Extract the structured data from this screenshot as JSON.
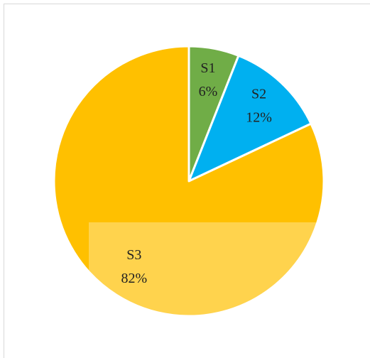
{
  "chart_data": {
    "type": "pie",
    "categories": [
      "S1",
      "S2",
      "S3"
    ],
    "values": [
      6,
      12,
      82
    ],
    "value_labels": [
      "6%",
      "12%",
      "82%"
    ],
    "colors": [
      "#70ad47",
      "#00b0f0",
      "#ffc000"
    ]
  }
}
